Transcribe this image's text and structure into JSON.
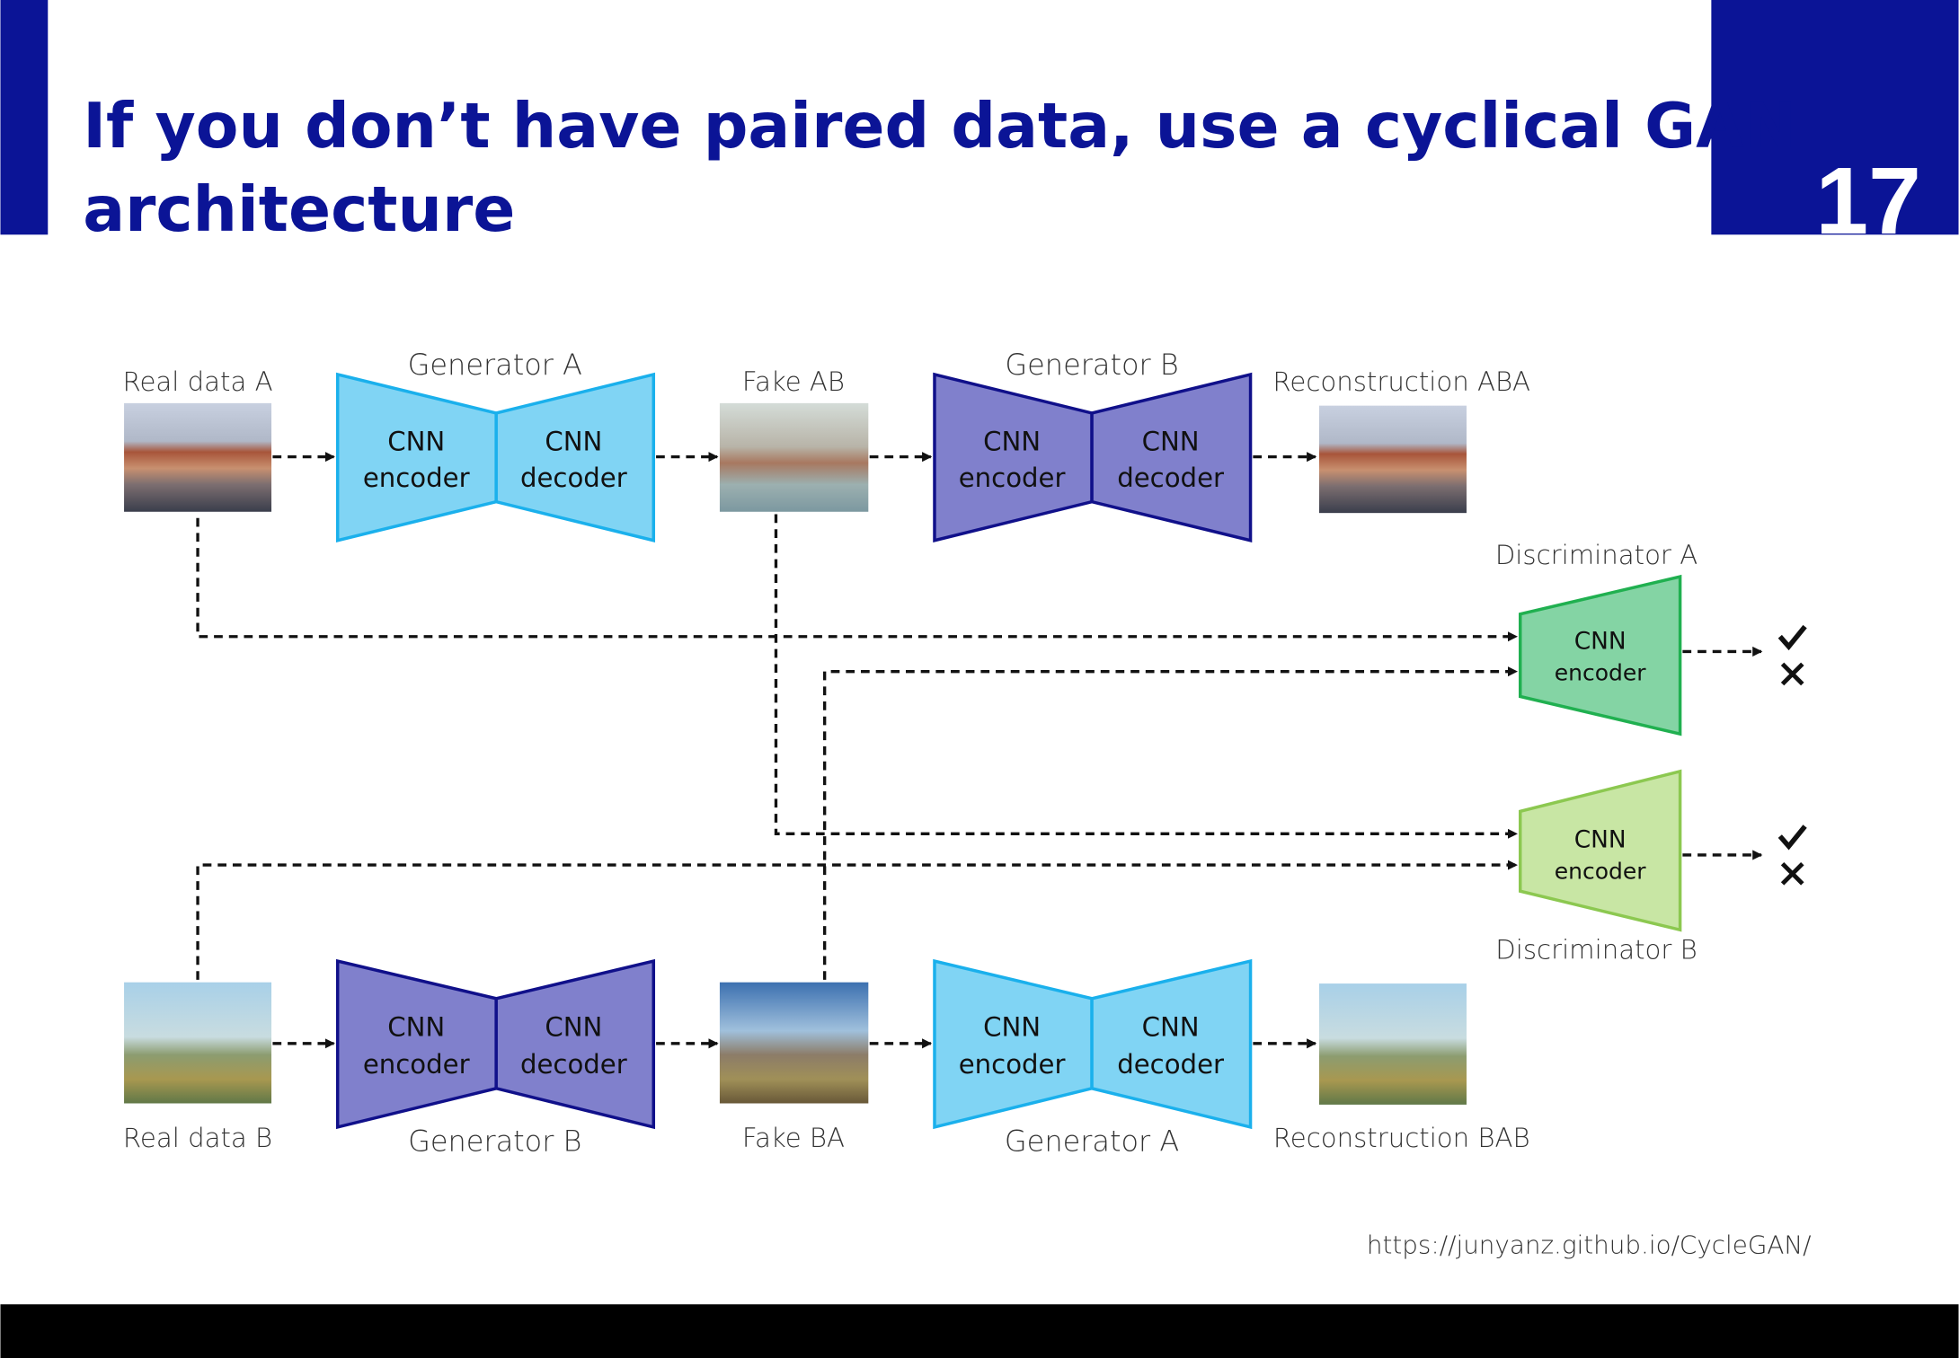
{
  "slide": {
    "title_line1": "If you don’t have paired data, use a cyclical GAN",
    "title_line2": "architecture",
    "page_number": "17",
    "source_url": "https://junyanz.github.io/CycleGAN/",
    "accent_color": "#0b1496"
  },
  "top_row": {
    "real": "Real data A",
    "gen1": "Generator A",
    "fake": "Fake AB",
    "gen2": "Generator B",
    "recon": "Reconstruction ABA"
  },
  "bottom_row": {
    "real": "Real data B",
    "gen1": "Generator B",
    "fake": "Fake BA",
    "gen2": "Generator A",
    "recon": "Reconstruction BAB"
  },
  "blocks": {
    "cnn": "CNN",
    "encoder": "encoder",
    "decoder": "decoder"
  },
  "discriminators": {
    "a": "Discriminator A",
    "b": "Discriminator B",
    "real_icon": "check-icon",
    "fake_icon": "cross-icon"
  },
  "colors": {
    "generator_a_fill": "#80d4f4",
    "generator_a_stroke": "#1ab0ec",
    "generator_b_fill": "#8080cc",
    "generator_b_stroke": "#10108a",
    "disc_a_fill": "#84d4a4",
    "disc_a_stroke": "#20b050",
    "disc_b_fill": "#c8e6a4",
    "disc_b_stroke": "#8cc850"
  }
}
